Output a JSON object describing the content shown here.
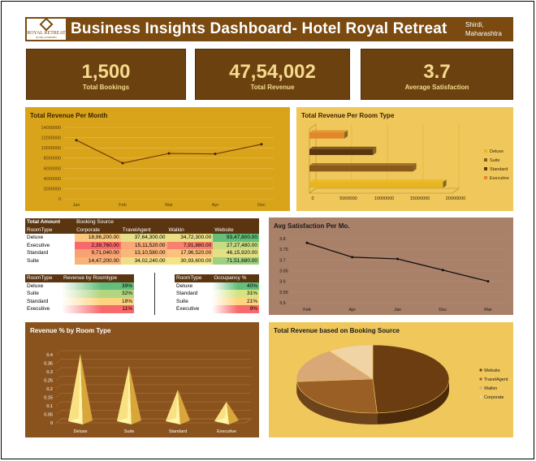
{
  "header": {
    "logo_text": "ROYAL RETREAT",
    "logo_sub": "HOTEL & RESORT",
    "title": "Business Insights Dashboard- Hotel Royal Retreat",
    "location_line1": "Shirdi,",
    "location_line2": "Maharashtra"
  },
  "kpis": [
    {
      "value": "1,500",
      "label": "Total Bookings"
    },
    {
      "value": "47,54,002",
      "label": "Total Revenue"
    },
    {
      "value": "3.7",
      "label": "Average Satisfaction"
    }
  ],
  "colors": {
    "brown": "#7a4a10",
    "gold": "#d9a41a",
    "light_gold": "#f0c75a",
    "taupe": "#a98068"
  },
  "chart_data": [
    {
      "type": "line",
      "title": "Total Revenue Per Month",
      "x": [
        "Jan",
        "Feb",
        "Mar",
        "Apr",
        "Dec"
      ],
      "y_ticks": [
        "0",
        "2000000",
        "4000000",
        "6000000",
        "8000000",
        "10000000",
        "12000000",
        "14000000"
      ],
      "ylim": [
        0,
        14000000
      ],
      "values": [
        11500000,
        7000000,
        8900000,
        8800000,
        10700000
      ]
    },
    {
      "type": "bar",
      "orientation": "horizontal",
      "title": "Total Revenue Per Room Type",
      "categories": [
        "Executive",
        "Standard",
        "Suite",
        "Deluxe"
      ],
      "values": [
        4900000,
        8900000,
        14500000,
        18700000
      ],
      "colors": [
        "#e0872a",
        "#5a3510",
        "#8a5a1a",
        "#e8b520"
      ],
      "x_ticks": [
        "0",
        "5000000",
        "10000000",
        "15000000",
        "20000000"
      ],
      "xlim": [
        0,
        20000000
      ],
      "legend": [
        "Deluxe",
        "Suite",
        "Standard",
        "Executive"
      ],
      "legend_colors": [
        "#e8b520",
        "#8a5a1a",
        "#5a3510",
        "#e0872a"
      ],
      "legend_position": "right"
    },
    {
      "type": "line",
      "title": "Avg Satisfaction Per Mo.",
      "x": [
        "Feb",
        "Apr",
        "Jan",
        "Dec",
        "Mar"
      ],
      "y_ticks": [
        "3.5",
        "3.55",
        "3.6",
        "3.65",
        "3.7",
        "3.75",
        "3.8"
      ],
      "ylim": [
        3.5,
        3.8
      ],
      "values": [
        3.78,
        3.713,
        3.705,
        3.653,
        3.6
      ]
    },
    {
      "type": "bar",
      "style": "3d-pyramid",
      "title": "Revenue % by Room Type",
      "categories": [
        "Deluxe",
        "Suite",
        "Standard",
        "Executive"
      ],
      "values": [
        0.39,
        0.32,
        0.18,
        0.11
      ],
      "y_ticks": [
        "0",
        "0.05",
        "0.1",
        "0.15",
        "0.2",
        "0.25",
        "0.3",
        "0.35",
        "0.4"
      ],
      "ylim": [
        0,
        0.4
      ]
    },
    {
      "type": "pie",
      "style": "3d",
      "title": "Total Revenue based on Booking Source",
      "categories": [
        "Website",
        "TravelAgent",
        "Walkin",
        "Corporate"
      ],
      "values": [
        49.1,
        24.7,
        16.6,
        9.6
      ],
      "colors": [
        "#6b3d10",
        "#9a5f25",
        "#d9a877",
        "#f0d4a6"
      ],
      "legend_position": "right"
    }
  ],
  "booking_table": {
    "title": "Total Amount",
    "col_header_title": "Booking Source",
    "row_header": "RoomType",
    "columns": [
      "Corporate",
      "TravelAgent",
      "Walkin",
      "Website"
    ],
    "rows": [
      {
        "label": "Deluxe",
        "cells": [
          "18,96,200.00",
          "37,64,300.00",
          "34,72,300.00",
          "93,47,800.00"
        ]
      },
      {
        "label": "Executive",
        "cells": [
          "2,39,760.00",
          "15,11,520.00",
          "7,91,880.00",
          "27,27,480.00"
        ]
      },
      {
        "label": "Standard",
        "cells": [
          "9,71,040.00",
          "13,10,580.00",
          "17,96,520.00",
          "46,15,920.00"
        ]
      },
      {
        "label": "Suite",
        "cells": [
          "14,47,200.00",
          "34,02,240.00",
          "30,93,600.00",
          "71,51,680.00"
        ]
      }
    ],
    "cell_colors": [
      [
        "#f8c97e",
        "#e7e08a",
        "#eadf85",
        "#63be7b"
      ],
      [
        "#f8696b",
        "#f9a876",
        "#f8806f",
        "#c9dc82"
      ],
      [
        "#f8a173",
        "#f9b77a",
        "#fcc17c",
        "#e2e083"
      ],
      [
        "#f8b478",
        "#f0e085",
        "#f6e384",
        "#9dd07f"
      ]
    ]
  },
  "revenue_table": {
    "headers": [
      "RoomType",
      "Revenue by Roomtype"
    ],
    "rows": [
      {
        "label": "Deluxe",
        "value": "39%"
      },
      {
        "label": "Suite",
        "value": "32%"
      },
      {
        "label": "Standard",
        "value": "18%"
      },
      {
        "label": "Executive",
        "value": "11%"
      }
    ],
    "colors": [
      "#63be7b",
      "#b1d580",
      "#fcd47f",
      "#f8696b"
    ]
  },
  "occupancy_table": {
    "headers": [
      "RoomType",
      "Occupancy %"
    ],
    "rows": [
      {
        "label": "Deluxe",
        "value": "40%"
      },
      {
        "label": "Standard",
        "value": "31%"
      },
      {
        "label": "Suite",
        "value": "21%"
      },
      {
        "label": "Executive",
        "value": "9%"
      }
    ],
    "colors": [
      "#63be7b",
      "#d6e382",
      "#fdd57f",
      "#f8696b"
    ]
  }
}
